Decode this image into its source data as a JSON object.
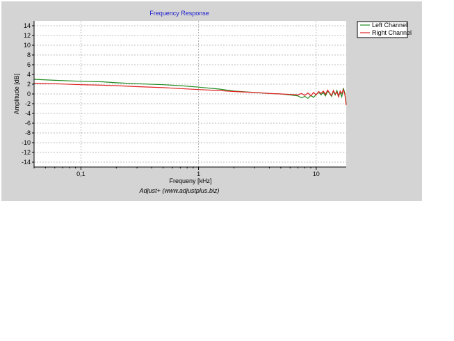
{
  "chart_data": {
    "type": "line",
    "title": "Frequency Response",
    "xlabel": "Frequeny [kHz]",
    "ylabel": "Amplitude [dB]",
    "x_scale": "log",
    "xlim": [
      0.04,
      18
    ],
    "ylim": [
      -15,
      15
    ],
    "x_ticks": [
      {
        "value": 0.1,
        "label": "0,1"
      },
      {
        "value": 1,
        "label": "1"
      },
      {
        "value": 10,
        "label": "10"
      }
    ],
    "y_ticks": [
      14,
      12,
      10,
      8,
      6,
      4,
      2,
      0,
      -2,
      -4,
      -6,
      -8,
      -10,
      -12,
      -14
    ],
    "grid": true,
    "legend_position": "top-right",
    "footer": "Adjust+ (www.adjustplus.biz)",
    "series": [
      {
        "name": "Left Channel",
        "color": "#1f8a1f",
        "points": [
          [
            0.04,
            3.0
          ],
          [
            0.06,
            2.8
          ],
          [
            0.1,
            2.6
          ],
          [
            0.15,
            2.5
          ],
          [
            0.2,
            2.3
          ],
          [
            0.3,
            2.1
          ],
          [
            0.5,
            1.9
          ],
          [
            0.7,
            1.7
          ],
          [
            1,
            1.4
          ],
          [
            1.5,
            1.0
          ],
          [
            2,
            0.6
          ],
          [
            3,
            0.3
          ],
          [
            4,
            0.1
          ],
          [
            5,
            0.0
          ],
          [
            6,
            -0.2
          ],
          [
            7,
            -0.4
          ],
          [
            7.5,
            -0.8
          ],
          [
            8,
            -0.5
          ],
          [
            8.5,
            -0.9
          ],
          [
            9,
            -0.3
          ],
          [
            9.5,
            -0.7
          ],
          [
            10,
            -0.1
          ],
          [
            10.5,
            0.4
          ],
          [
            11,
            -0.2
          ],
          [
            11.5,
            0.3
          ],
          [
            12,
            -0.4
          ],
          [
            12.5,
            0.6
          ],
          [
            13,
            0.1
          ],
          [
            13.5,
            -0.5
          ],
          [
            14,
            0.5
          ],
          [
            14.5,
            -0.2
          ],
          [
            15,
            0.7
          ],
          [
            15.5,
            -0.4
          ],
          [
            16,
            0.3
          ],
          [
            16.5,
            -0.6
          ],
          [
            17,
            1.2
          ],
          [
            17.5,
            0.2
          ],
          [
            18,
            -2.0
          ]
        ]
      },
      {
        "name": "Right Channel",
        "color": "#e02020",
        "points": [
          [
            0.04,
            2.2
          ],
          [
            0.06,
            2.1
          ],
          [
            0.1,
            1.9
          ],
          [
            0.15,
            1.8
          ],
          [
            0.2,
            1.7
          ],
          [
            0.3,
            1.5
          ],
          [
            0.5,
            1.3
          ],
          [
            0.7,
            1.1
          ],
          [
            1,
            0.9
          ],
          [
            1.5,
            0.7
          ],
          [
            2,
            0.5
          ],
          [
            3,
            0.3
          ],
          [
            4,
            0.1
          ],
          [
            5,
            0.0
          ],
          [
            6,
            -0.1
          ],
          [
            7,
            -0.2
          ],
          [
            7.5,
            0.1
          ],
          [
            8,
            -0.3
          ],
          [
            8.5,
            0.2
          ],
          [
            9,
            -0.4
          ],
          [
            9.5,
            0.3
          ],
          [
            10,
            -0.2
          ],
          [
            10.5,
            0.5
          ],
          [
            11,
            0.1
          ],
          [
            11.5,
            0.6
          ],
          [
            12,
            -0.1
          ],
          [
            12.5,
            0.8
          ],
          [
            13,
            0.2
          ],
          [
            13.5,
            -0.3
          ],
          [
            14,
            0.7
          ],
          [
            14.5,
            0.0
          ],
          [
            15,
            0.4
          ],
          [
            15.5,
            -0.6
          ],
          [
            16,
            0.6
          ],
          [
            16.5,
            0.1
          ],
          [
            17,
            0.9
          ],
          [
            17.5,
            0.0
          ],
          [
            18,
            -2.3
          ]
        ]
      }
    ]
  }
}
